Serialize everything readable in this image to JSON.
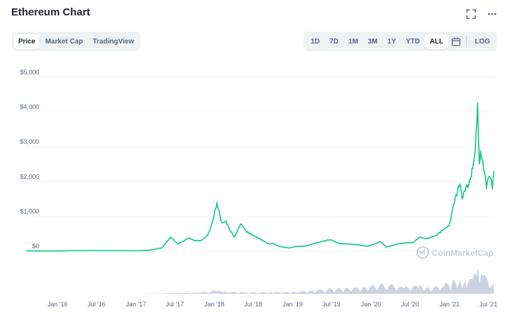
{
  "header": {
    "title": "Ethereum Chart"
  },
  "icons": {
    "fullscreen": "fullscreen-icon",
    "more": "more-icon",
    "calendar": "calendar-icon"
  },
  "tabs": [
    {
      "label": "Price",
      "active": true
    },
    {
      "label": "Market Cap",
      "active": false
    },
    {
      "label": "TradingView",
      "active": false
    }
  ],
  "ranges": [
    {
      "label": "1D",
      "active": false
    },
    {
      "label": "7D",
      "active": false
    },
    {
      "label": "1M",
      "active": false
    },
    {
      "label": "3M",
      "active": false
    },
    {
      "label": "1Y",
      "active": false
    },
    {
      "label": "YTD",
      "active": false
    },
    {
      "label": "ALL",
      "active": true
    }
  ],
  "log_label": "LOG",
  "watermark": "CoinMarketCap",
  "colors": {
    "line": "#16c784",
    "volume": "#c7cddd",
    "grid": "#eff2f5",
    "axis_text": "#58667e"
  },
  "chart_data": {
    "type": "line",
    "title": "",
    "xlabel": "",
    "ylabel": "",
    "ylim": [
      0,
      5000
    ],
    "xlim": [
      "2015-08-07",
      "2021-08-01"
    ],
    "grid": true,
    "y_ticks": [
      {
        "value": 0,
        "label": "$0"
      },
      {
        "value": 1000,
        "label": "$1,000"
      },
      {
        "value": 2000,
        "label": "$2,000"
      },
      {
        "value": 3000,
        "label": "$3,000"
      },
      {
        "value": 4000,
        "label": "$4,000"
      },
      {
        "value": 5000,
        "label": "$5,000"
      }
    ],
    "x_ticks": [
      {
        "date": "2016-01-01",
        "label": "Jan '16"
      },
      {
        "date": "2016-07-01",
        "label": "Jul '16"
      },
      {
        "date": "2017-01-01",
        "label": "Jan '17"
      },
      {
        "date": "2017-07-01",
        "label": "Jul '17"
      },
      {
        "date": "2018-01-01",
        "label": "Jan '18"
      },
      {
        "date": "2018-07-01",
        "label": "Jul '18"
      },
      {
        "date": "2019-01-01",
        "label": "Jan '19"
      },
      {
        "date": "2019-07-01",
        "label": "Jul '19"
      },
      {
        "date": "2020-01-01",
        "label": "Jan '20"
      },
      {
        "date": "2020-07-01",
        "label": "Jul '20"
      },
      {
        "date": "2021-01-01",
        "label": "Jan '21"
      },
      {
        "date": "2021-07-01",
        "label": "Jul '21"
      }
    ],
    "series": [
      {
        "x": [
          "2015-08-07",
          "2016-01-01",
          "2016-03-15",
          "2016-06-15",
          "2016-07-01",
          "2016-10-01",
          "2017-01-01",
          "2017-03-01",
          "2017-05-01",
          "2017-06-12",
          "2017-07-15",
          "2017-08-15",
          "2017-09-01",
          "2017-10-01",
          "2017-11-01",
          "2017-12-01",
          "2017-12-20",
          "2018-01-13",
          "2018-02-05",
          "2018-02-25",
          "2018-03-15",
          "2018-04-05",
          "2018-05-05",
          "2018-06-01",
          "2018-07-01",
          "2018-08-01",
          "2018-09-12",
          "2018-10-01",
          "2018-11-01",
          "2018-12-15",
          "2019-01-15",
          "2019-03-01",
          "2019-05-01",
          "2019-06-26",
          "2019-08-01",
          "2019-09-15",
          "2019-11-01",
          "2019-12-15",
          "2020-02-15",
          "2020-03-13",
          "2020-05-01",
          "2020-06-01",
          "2020-07-15",
          "2020-08-15",
          "2020-09-15",
          "2020-11-01",
          "2020-12-01",
          "2021-01-01",
          "2021-01-20",
          "2021-02-19",
          "2021-03-01",
          "2021-03-15",
          "2021-04-01",
          "2021-04-20",
          "2021-05-01",
          "2021-05-12",
          "2021-05-20",
          "2021-05-26",
          "2021-06-05",
          "2021-06-22",
          "2021-07-01",
          "2021-07-10",
          "2021-07-20",
          "2021-07-28"
        ],
        "values": [
          3,
          1,
          12,
          14,
          12,
          12,
          8,
          19,
          90,
          400,
          200,
          300,
          380,
          300,
          300,
          450,
          750,
          1380,
          800,
          850,
          600,
          400,
          800,
          550,
          450,
          350,
          200,
          220,
          130,
          85,
          130,
          140,
          250,
          330,
          220,
          200,
          180,
          130,
          270,
          110,
          200,
          230,
          240,
          400,
          350,
          450,
          600,
          740,
          1350,
          1950,
          1500,
          1800,
          1900,
          2400,
          2900,
          4150,
          2500,
          2800,
          2600,
          1850,
          2100,
          2200,
          1800,
          2300
        ]
      }
    ],
    "volume": {
      "ylim": [
        0,
        100
      ],
      "x": [
        "2015-08-07",
        "2016-06-01",
        "2017-01-01",
        "2017-05-01",
        "2017-07-01",
        "2017-10-01",
        "2017-12-01",
        "2018-01-10",
        "2018-02-15",
        "2018-06-01",
        "2018-10-01",
        "2019-01-01",
        "2019-04-01",
        "2019-06-01",
        "2019-09-01",
        "2019-12-01",
        "2020-03-13",
        "2020-06-01",
        "2020-08-15",
        "2020-10-01",
        "2020-12-01",
        "2021-01-15",
        "2021-02-20",
        "2021-03-20",
        "2021-04-20",
        "2021-05-12",
        "2021-05-20",
        "2021-06-05",
        "2021-06-22",
        "2021-07-10",
        "2021-07-28"
      ],
      "values": [
        0,
        0,
        0,
        1,
        2,
        3,
        6,
        9,
        6,
        4,
        4,
        5,
        9,
        13,
        15,
        18,
        28,
        17,
        23,
        15,
        24,
        34,
        43,
        32,
        41,
        70,
        80,
        52,
        45,
        40,
        30
      ]
    }
  }
}
